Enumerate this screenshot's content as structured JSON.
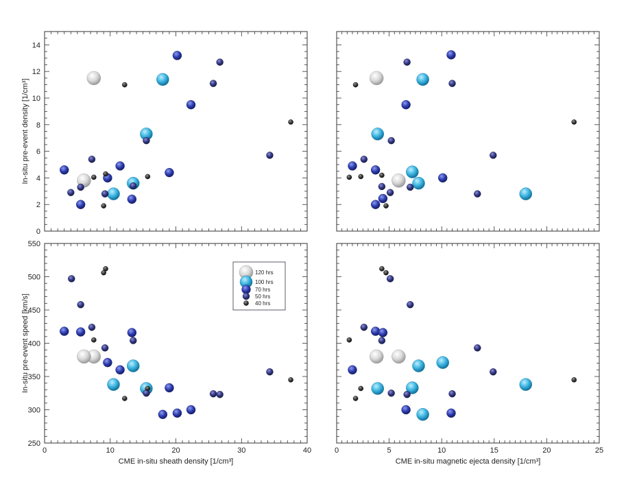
{
  "chart_data": {
    "type": "scatter",
    "colors": {
      "120hrs": "#d9d9d9",
      "100hrs": "#3bb4e0",
      "70hrs": "#2f3fb2",
      "50hrs": "#363a86",
      "40hrs": "#3a3a3a"
    },
    "legend": {
      "placement": "upper-middle of lower-left panel",
      "entries": [
        {
          "label": "120 hrs",
          "class": "120hrs"
        },
        {
          "label": "100 hrs",
          "class": "100hrs"
        },
        {
          "label": "70 hrs",
          "class": "70hrs"
        },
        {
          "label": "50 hrs",
          "class": "50hrs"
        },
        {
          "label": "40 hrs",
          "class": "40hrs"
        }
      ]
    },
    "panels": [
      {
        "id": "top-left",
        "ylabel": "In-situ pre-event density [1/cm³]",
        "xlim": [
          0,
          40
        ],
        "ylim": [
          0,
          15
        ],
        "xticks": [],
        "yticks": [
          "0",
          "2",
          "4",
          "6",
          "8",
          "10",
          "12",
          "14"
        ],
        "points": [
          {
            "x": 7.5,
            "y": 11.5,
            "class": "120hrs"
          },
          {
            "x": 6.0,
            "y": 3.8,
            "class": "120hrs"
          },
          {
            "x": 13.5,
            "y": 3.6,
            "class": "100hrs"
          },
          {
            "x": 18.0,
            "y": 11.4,
            "class": "100hrs"
          },
          {
            "x": 15.5,
            "y": 7.3,
            "class": "100hrs"
          },
          {
            "x": 10.5,
            "y": 2.8,
            "class": "100hrs"
          },
          {
            "x": 19.0,
            "y": 4.4,
            "class": "70hrs"
          },
          {
            "x": 22.3,
            "y": 9.5,
            "class": "70hrs"
          },
          {
            "x": 9.6,
            "y": 4.0,
            "class": "70hrs"
          },
          {
            "x": 3.0,
            "y": 4.6,
            "class": "70hrs"
          },
          {
            "x": 11.5,
            "y": 4.9,
            "class": "70hrs"
          },
          {
            "x": 5.5,
            "y": 2.0,
            "class": "70hrs"
          },
          {
            "x": 13.3,
            "y": 2.4,
            "class": "70hrs"
          },
          {
            "x": 20.2,
            "y": 13.2,
            "class": "70hrs"
          },
          {
            "x": 26.7,
            "y": 12.7,
            "class": "50hrs"
          },
          {
            "x": 25.7,
            "y": 11.1,
            "class": "50hrs"
          },
          {
            "x": 15.5,
            "y": 6.8,
            "class": "50hrs"
          },
          {
            "x": 7.2,
            "y": 5.4,
            "class": "50hrs"
          },
          {
            "x": 34.3,
            "y": 5.7,
            "class": "50hrs"
          },
          {
            "x": 5.5,
            "y": 3.3,
            "class": "50hrs"
          },
          {
            "x": 4.0,
            "y": 2.9,
            "class": "50hrs"
          },
          {
            "x": 13.5,
            "y": 3.4,
            "class": "50hrs"
          },
          {
            "x": 9.2,
            "y": 2.8,
            "class": "50hrs"
          },
          {
            "x": 12.2,
            "y": 11.0,
            "class": "40hrs"
          },
          {
            "x": 37.5,
            "y": 8.2,
            "class": "40hrs"
          },
          {
            "x": 9.3,
            "y": 4.3,
            "class": "40hrs"
          },
          {
            "x": 15.7,
            "y": 4.1,
            "class": "40hrs"
          },
          {
            "x": 7.5,
            "y": 4.05,
            "class": "40hrs"
          },
          {
            "x": 9.0,
            "y": 1.9,
            "class": "40hrs"
          }
        ]
      },
      {
        "id": "top-right",
        "xlim": [
          0,
          25
        ],
        "ylim": [
          0,
          15
        ],
        "xticks": [],
        "yticks": [],
        "points": [
          {
            "x": 3.8,
            "y": 11.5,
            "class": "120hrs"
          },
          {
            "x": 5.9,
            "y": 3.8,
            "class": "120hrs"
          },
          {
            "x": 3.9,
            "y": 7.3,
            "class": "100hrs"
          },
          {
            "x": 8.2,
            "y": 11.4,
            "class": "100hrs"
          },
          {
            "x": 7.8,
            "y": 3.6,
            "class": "100hrs"
          },
          {
            "x": 18.0,
            "y": 2.8,
            "class": "100hrs"
          },
          {
            "x": 7.2,
            "y": 4.45,
            "class": "100hrs"
          },
          {
            "x": 6.6,
            "y": 9.5,
            "class": "70hrs"
          },
          {
            "x": 10.1,
            "y": 4.0,
            "class": "70hrs"
          },
          {
            "x": 3.7,
            "y": 4.6,
            "class": "70hrs"
          },
          {
            "x": 1.5,
            "y": 4.9,
            "class": "70hrs"
          },
          {
            "x": 3.7,
            "y": 2.0,
            "class": "70hrs"
          },
          {
            "x": 4.4,
            "y": 2.45,
            "class": "70hrs"
          },
          {
            "x": 10.9,
            "y": 13.25,
            "class": "70hrs"
          },
          {
            "x": 6.7,
            "y": 12.7,
            "class": "50hrs"
          },
          {
            "x": 11.0,
            "y": 11.1,
            "class": "50hrs"
          },
          {
            "x": 5.2,
            "y": 6.8,
            "class": "50hrs"
          },
          {
            "x": 2.6,
            "y": 5.4,
            "class": "50hrs"
          },
          {
            "x": 14.9,
            "y": 5.7,
            "class": "50hrs"
          },
          {
            "x": 7.0,
            "y": 3.3,
            "class": "50hrs"
          },
          {
            "x": 4.3,
            "y": 3.35,
            "class": "50hrs"
          },
          {
            "x": 5.1,
            "y": 2.9,
            "class": "50hrs"
          },
          {
            "x": 13.4,
            "y": 2.8,
            "class": "50hrs"
          },
          {
            "x": 1.8,
            "y": 11.0,
            "class": "40hrs"
          },
          {
            "x": 22.6,
            "y": 8.2,
            "class": "40hrs"
          },
          {
            "x": 4.3,
            "y": 4.2,
            "class": "40hrs"
          },
          {
            "x": 2.3,
            "y": 4.1,
            "class": "40hrs"
          },
          {
            "x": 1.2,
            "y": 4.05,
            "class": "40hrs"
          },
          {
            "x": 4.7,
            "y": 1.9,
            "class": "40hrs"
          }
        ]
      },
      {
        "id": "bottom-left",
        "xlabel": "CME in-situ sheath density [1/cm³]",
        "ylabel": "In-situ pre-event speed [km/s]",
        "xlim": [
          0,
          40
        ],
        "ylim": [
          250,
          550
        ],
        "xticks": [
          "0",
          "10",
          "20",
          "30",
          "40"
        ],
        "yticks": [
          "250",
          "300",
          "350",
          "400",
          "450",
          "500",
          "550"
        ],
        "points": [
          {
            "x": 7.5,
            "y": 380,
            "class": "120hrs"
          },
          {
            "x": 6.0,
            "y": 380,
            "class": "120hrs"
          },
          {
            "x": 13.5,
            "y": 366,
            "class": "100hrs"
          },
          {
            "x": 10.5,
            "y": 338,
            "class": "100hrs"
          },
          {
            "x": 15.5,
            "y": 332,
            "class": "100hrs"
          },
          {
            "x": 18.0,
            "y": 293,
            "class": "70hrs"
          },
          {
            "x": 19.0,
            "y": 333,
            "class": "70hrs"
          },
          {
            "x": 22.3,
            "y": 300,
            "class": "70hrs"
          },
          {
            "x": 9.6,
            "y": 371,
            "class": "70hrs"
          },
          {
            "x": 3.0,
            "y": 418,
            "class": "70hrs"
          },
          {
            "x": 5.5,
            "y": 417,
            "class": "70hrs"
          },
          {
            "x": 13.3,
            "y": 416,
            "class": "70hrs"
          },
          {
            "x": 11.5,
            "y": 360,
            "class": "70hrs"
          },
          {
            "x": 20.2,
            "y": 295,
            "class": "70hrs"
          },
          {
            "x": 4.1,
            "y": 497,
            "class": "50hrs"
          },
          {
            "x": 5.5,
            "y": 458,
            "class": "50hrs"
          },
          {
            "x": 7.2,
            "y": 424,
            "class": "50hrs"
          },
          {
            "x": 13.5,
            "y": 404,
            "class": "50hrs"
          },
          {
            "x": 9.2,
            "y": 393,
            "class": "50hrs"
          },
          {
            "x": 34.3,
            "y": 357,
            "class": "50hrs"
          },
          {
            "x": 15.5,
            "y": 325,
            "class": "50hrs"
          },
          {
            "x": 25.7,
            "y": 324,
            "class": "50hrs"
          },
          {
            "x": 26.7,
            "y": 323,
            "class": "50hrs"
          },
          {
            "x": 9.3,
            "y": 512,
            "class": "40hrs"
          },
          {
            "x": 9.0,
            "y": 506,
            "class": "40hrs"
          },
          {
            "x": 7.5,
            "y": 405,
            "class": "40hrs"
          },
          {
            "x": 37.5,
            "y": 345,
            "class": "40hrs"
          },
          {
            "x": 15.7,
            "y": 332,
            "class": "40hrs"
          },
          {
            "x": 12.2,
            "y": 317,
            "class": "40hrs"
          }
        ]
      },
      {
        "id": "bottom-right",
        "xlabel": "CME in-situ magnetic ejecta density [1/cm³]",
        "xlim": [
          0,
          25
        ],
        "ylim": [
          250,
          550
        ],
        "xticks": [
          "0",
          "5",
          "10",
          "15",
          "20",
          "25"
        ],
        "yticks": [],
        "points": [
          {
            "x": 3.8,
            "y": 380,
            "class": "120hrs"
          },
          {
            "x": 5.9,
            "y": 380,
            "class": "120hrs"
          },
          {
            "x": 7.8,
            "y": 366,
            "class": "100hrs"
          },
          {
            "x": 3.9,
            "y": 332,
            "class": "100hrs"
          },
          {
            "x": 7.2,
            "y": 333,
            "class": "100hrs"
          },
          {
            "x": 18.0,
            "y": 338,
            "class": "100hrs"
          },
          {
            "x": 8.2,
            "y": 293,
            "class": "100hrs"
          },
          {
            "x": 10.1,
            "y": 371,
            "class": "100hrs"
          },
          {
            "x": 6.6,
            "y": 300,
            "class": "70hrs"
          },
          {
            "x": 3.7,
            "y": 418,
            "class": "70hrs"
          },
          {
            "x": 1.5,
            "y": 360,
            "class": "70hrs"
          },
          {
            "x": 4.4,
            "y": 416,
            "class": "70hrs"
          },
          {
            "x": 10.9,
            "y": 295,
            "class": "70hrs"
          },
          {
            "x": 5.1,
            "y": 497,
            "class": "50hrs"
          },
          {
            "x": 7.0,
            "y": 458,
            "class": "50hrs"
          },
          {
            "x": 2.6,
            "y": 424,
            "class": "50hrs"
          },
          {
            "x": 4.3,
            "y": 404,
            "class": "50hrs"
          },
          {
            "x": 13.4,
            "y": 393,
            "class": "50hrs"
          },
          {
            "x": 14.9,
            "y": 357,
            "class": "50hrs"
          },
          {
            "x": 5.2,
            "y": 325,
            "class": "50hrs"
          },
          {
            "x": 6.7,
            "y": 323,
            "class": "50hrs"
          },
          {
            "x": 11.0,
            "y": 324,
            "class": "50hrs"
          },
          {
            "x": 4.3,
            "y": 512,
            "class": "40hrs"
          },
          {
            "x": 4.7,
            "y": 506,
            "class": "40hrs"
          },
          {
            "x": 1.2,
            "y": 405,
            "class": "40hrs"
          },
          {
            "x": 22.6,
            "y": 345,
            "class": "40hrs"
          },
          {
            "x": 2.3,
            "y": 332,
            "class": "40hrs"
          },
          {
            "x": 1.8,
            "y": 317,
            "class": "40hrs"
          }
        ]
      }
    ]
  }
}
